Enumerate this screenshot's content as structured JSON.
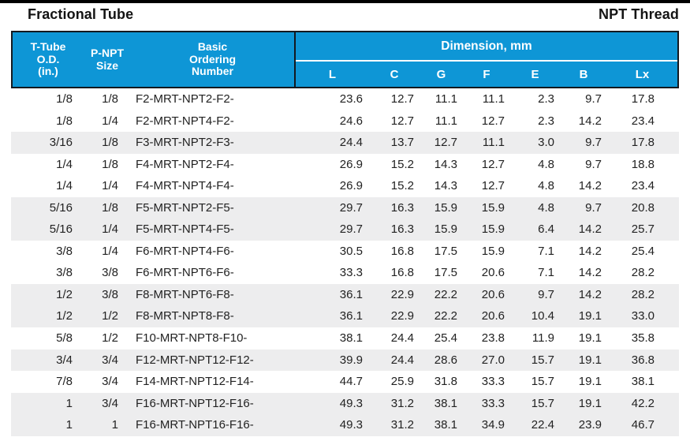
{
  "page": {
    "title_left": "Fractional Tube",
    "title_right": "NPT Thread"
  },
  "colors": {
    "accent_blue": "#0e96d6",
    "row_stripe": "#ededee",
    "header_border": "#14191f",
    "text": "#222222"
  },
  "table": {
    "col_headers": {
      "tube_od": [
        "T-Tube",
        "O.D.",
        "(in.)"
      ],
      "npt_size": [
        "P-NPT",
        "Size"
      ],
      "ordering": [
        "Basic",
        "Ordering",
        "Number"
      ],
      "dimension_group": "Dimension, mm",
      "dims": [
        "L",
        "C",
        "G",
        "F",
        "E",
        "B",
        "Lx"
      ]
    },
    "rows": [
      {
        "od": "1/8",
        "npt": "1/8",
        "part": "F2-MRT-NPT2-F2-",
        "dims": [
          "23.6",
          "12.7",
          "11.1",
          "11.1",
          "2.3",
          "9.7",
          "17.8"
        ],
        "shaded": false
      },
      {
        "od": "1/8",
        "npt": "1/4",
        "part": "F2-MRT-NPT4-F2-",
        "dims": [
          "24.6",
          "12.7",
          "11.1",
          "12.7",
          "2.3",
          "14.2",
          "23.4"
        ],
        "shaded": false
      },
      {
        "od": "3/16",
        "npt": "1/8",
        "part": "F3-MRT-NPT2-F3-",
        "dims": [
          "24.4",
          "13.7",
          "12.7",
          "11.1",
          "3.0",
          "9.7",
          "17.8"
        ],
        "shaded": true
      },
      {
        "od": "1/4",
        "npt": "1/8",
        "part": "F4-MRT-NPT2-F4-",
        "dims": [
          "26.9",
          "15.2",
          "14.3",
          "12.7",
          "4.8",
          "9.7",
          "18.8"
        ],
        "shaded": false
      },
      {
        "od": "1/4",
        "npt": "1/4",
        "part": "F4-MRT-NPT4-F4-",
        "dims": [
          "26.9",
          "15.2",
          "14.3",
          "12.7",
          "4.8",
          "14.2",
          "23.4"
        ],
        "shaded": false
      },
      {
        "od": "5/16",
        "npt": "1/8",
        "part": "F5-MRT-NPT2-F5-",
        "dims": [
          "29.7",
          "16.3",
          "15.9",
          "15.9",
          "4.8",
          "9.7",
          "20.8"
        ],
        "shaded": true
      },
      {
        "od": "5/16",
        "npt": "1/4",
        "part": "F5-MRT-NPT4-F5-",
        "dims": [
          "29.7",
          "16.3",
          "15.9",
          "15.9",
          "6.4",
          "14.2",
          "25.7"
        ],
        "shaded": true
      },
      {
        "od": "3/8",
        "npt": "1/4",
        "part": "F6-MRT-NPT4-F6-",
        "dims": [
          "30.5",
          "16.8",
          "17.5",
          "15.9",
          "7.1",
          "14.2",
          "25.4"
        ],
        "shaded": false
      },
      {
        "od": "3/8",
        "npt": "3/8",
        "part": "F6-MRT-NPT6-F6-",
        "dims": [
          "33.3",
          "16.8",
          "17.5",
          "20.6",
          "7.1",
          "14.2",
          "28.2"
        ],
        "shaded": false
      },
      {
        "od": "1/2",
        "npt": "3/8",
        "part": "F8-MRT-NPT6-F8-",
        "dims": [
          "36.1",
          "22.9",
          "22.2",
          "20.6",
          "9.7",
          "14.2",
          "28.2"
        ],
        "shaded": true
      },
      {
        "od": "1/2",
        "npt": "1/2",
        "part": "F8-MRT-NPT8-F8-",
        "dims": [
          "36.1",
          "22.9",
          "22.2",
          "20.6",
          "10.4",
          "19.1",
          "33.0"
        ],
        "shaded": true
      },
      {
        "od": "5/8",
        "npt": "1/2",
        "part": "F10-MRT-NPT8-F10-",
        "dims": [
          "38.1",
          "24.4",
          "25.4",
          "23.8",
          "11.9",
          "19.1",
          "35.8"
        ],
        "shaded": false
      },
      {
        "od": "3/4",
        "npt": "3/4",
        "part": "F12-MRT-NPT12-F12-",
        "dims": [
          "39.9",
          "24.4",
          "28.6",
          "27.0",
          "15.7",
          "19.1",
          "36.8"
        ],
        "shaded": true
      },
      {
        "od": "7/8",
        "npt": "3/4",
        "part": "F14-MRT-NPT12-F14-",
        "dims": [
          "44.7",
          "25.9",
          "31.8",
          "33.3",
          "15.7",
          "19.1",
          "38.1"
        ],
        "shaded": false
      },
      {
        "od": "1",
        "npt": "3/4",
        "part": "F16-MRT-NPT12-F16-",
        "dims": [
          "49.3",
          "31.2",
          "38.1",
          "33.3",
          "15.7",
          "19.1",
          "42.2"
        ],
        "shaded": true
      },
      {
        "od": "1",
        "npt": "1",
        "part": "F16-MRT-NPT16-F16-",
        "dims": [
          "49.3",
          "31.2",
          "38.1",
          "34.9",
          "22.4",
          "23.9",
          "46.7"
        ],
        "shaded": true
      }
    ]
  }
}
